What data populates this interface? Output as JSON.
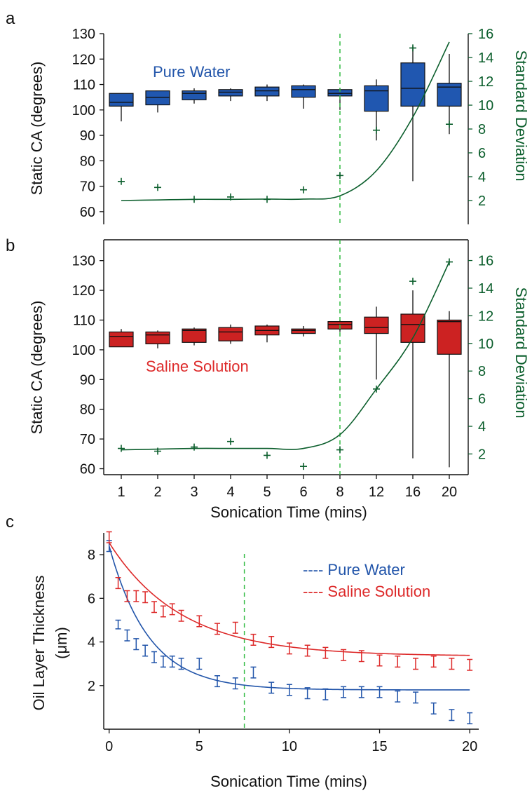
{
  "chart_data": [
    {
      "panel": "a",
      "type": "box",
      "annotation": "Pure Water",
      "categories": [
        "1",
        "2",
        "3",
        "4",
        "5",
        "6",
        "8",
        "12",
        "16",
        "20"
      ],
      "ylabel": "Static CA (degrees)",
      "ylim": [
        55,
        130
      ],
      "yticks": [
        60,
        70,
        80,
        90,
        100,
        110,
        120,
        130
      ],
      "y2label": "Standard Deviation",
      "y2lim": [
        0,
        16
      ],
      "y2ticks": [
        2,
        4,
        6,
        8,
        10,
        12,
        14,
        16
      ],
      "box_color": "#2057b0",
      "boxes": [
        {
          "min": 95.5,
          "q1": 101.5,
          "median": 103,
          "q3": 106.5,
          "max": 106.5
        },
        {
          "min": 99,
          "q1": 102,
          "median": 105,
          "q3": 107.5,
          "max": 107.5
        },
        {
          "min": 102.5,
          "q1": 104,
          "median": 106.5,
          "q3": 107.5,
          "max": 108.5
        },
        {
          "min": 103.5,
          "q1": 105.5,
          "median": 107,
          "q3": 108,
          "max": 108.5
        },
        {
          "min": 103.5,
          "q1": 105.5,
          "median": 107.5,
          "q3": 109,
          "max": 110
        },
        {
          "min": 100.5,
          "q1": 105,
          "median": 108,
          "q3": 109.5,
          "max": 110
        },
        {
          "min": 100,
          "q1": 105.5,
          "median": 106.5,
          "q3": 108,
          "max": 108.5
        },
        {
          "min": 88,
          "q1": 99.5,
          "median": 107.5,
          "q3": 109.5,
          "max": 112
        },
        {
          "min": 72,
          "q1": 101.5,
          "median": 108.5,
          "q3": 118.5,
          "max": 125
        },
        {
          "min": 90.5,
          "q1": 101.5,
          "median": 109,
          "q3": 110.5,
          "max": 122
        }
      ],
      "std_dev_points": [
        3.6,
        3.1,
        2.1,
        2.3,
        2.1,
        2.9,
        4.1,
        7.9,
        14.8,
        8.4
      ],
      "std_dev_fit": [
        2.0,
        2.05,
        2.1,
        2.1,
        2.12,
        2.12,
        2.4,
        4.5,
        9.0,
        15.3
      ],
      "vline_category_index": 6,
      "line_color": "#0b5e2c",
      "vline_color": "#33bb44"
    },
    {
      "panel": "b",
      "type": "box",
      "annotation": "Saline Solution",
      "categories": [
        "1",
        "2",
        "3",
        "4",
        "5",
        "6",
        "8",
        "12",
        "16",
        "20"
      ],
      "xlabel": "Sonication Time (mins)",
      "ylabel": "Static CA (degrees)",
      "ylim": [
        58,
        137
      ],
      "yticks": [
        60,
        70,
        80,
        90,
        100,
        110,
        120,
        130
      ],
      "y2label": "Standard Deviation",
      "y2lim": [
        0.5,
        17.5
      ],
      "y2ticks": [
        2,
        4,
        6,
        8,
        10,
        12,
        14,
        16
      ],
      "box_color": "#cc2222",
      "boxes": [
        {
          "min": 101,
          "q1": 101,
          "median": 104.5,
          "q3": 106,
          "max": 107
        },
        {
          "min": 100.5,
          "q1": 102,
          "median": 105,
          "q3": 106,
          "max": 106.5
        },
        {
          "min": 101.5,
          "q1": 102.5,
          "median": 106.5,
          "q3": 107,
          "max": 107.5
        },
        {
          "min": 102,
          "q1": 103,
          "median": 106,
          "q3": 107.5,
          "max": 108.5
        },
        {
          "min": 102.5,
          "q1": 105,
          "median": 106.5,
          "q3": 108,
          "max": 108.5
        },
        {
          "min": 104.5,
          "q1": 105.5,
          "median": 106.5,
          "q3": 107,
          "max": 108
        },
        {
          "min": 106,
          "q1": 107,
          "median": 108.5,
          "q3": 109.5,
          "max": 110
        },
        {
          "min": 90,
          "q1": 105.5,
          "median": 107.5,
          "q3": 111,
          "max": 114.5
        },
        {
          "min": 63.5,
          "q1": 102.5,
          "median": 108.5,
          "q3": 112,
          "max": 120
        },
        {
          "min": 60.5,
          "q1": 98.5,
          "median": 109.5,
          "q3": 110,
          "max": 113
        }
      ],
      "std_dev_points": [
        2.4,
        2.2,
        2.5,
        2.9,
        1.9,
        1.1,
        2.3,
        6.7,
        14.5,
        15.9
      ],
      "std_dev_fit": [
        2.3,
        2.35,
        2.4,
        2.4,
        2.4,
        2.4,
        3.4,
        6.7,
        10.4,
        15.9
      ],
      "vline_category_index": 6,
      "line_color": "#0b5e2c",
      "vline_color": "#33bb44"
    },
    {
      "panel": "c",
      "type": "scatter",
      "xlabel": "Sonication Time (mins)",
      "ylabel": "Oil Layer Thickness (μm)",
      "ylabel_lines": [
        "Oil Layer Thickness",
        "(μm)"
      ],
      "xlim": [
        -0.3,
        20.5
      ],
      "ylim": [
        0,
        9.0
      ],
      "xticks": [
        0,
        5,
        10,
        15,
        20
      ],
      "yticks": [
        2,
        4,
        6,
        8
      ],
      "vline_x": 7.5,
      "vline_color": "#33bb44",
      "series": [
        {
          "name": "Pure Water",
          "legend_label": "---- Pure Water",
          "color": "#2255aa",
          "x": [
            0,
            0.5,
            1,
            1.5,
            2,
            2.5,
            3,
            3.5,
            4,
            5,
            6,
            7,
            8,
            9,
            10,
            11,
            12,
            13,
            14,
            15,
            16,
            17,
            18,
            19,
            20
          ],
          "y": [
            8.4,
            4.8,
            4.3,
            3.9,
            3.6,
            3.3,
            3.1,
            3.1,
            3.0,
            3.0,
            2.2,
            2.1,
            2.6,
            1.9,
            1.8,
            1.65,
            1.6,
            1.7,
            1.7,
            1.7,
            1.5,
            1.45,
            0.95,
            0.65,
            0.5
          ],
          "err": [
            0.25,
            0.2,
            0.25,
            0.25,
            0.25,
            0.25,
            0.25,
            0.25,
            0.25,
            0.25,
            0.25,
            0.25,
            0.25,
            0.25,
            0.25,
            0.25,
            0.25,
            0.25,
            0.25,
            0.25,
            0.25,
            0.25,
            0.25,
            0.25,
            0.25
          ],
          "fit": {
            "a": 6.6,
            "tau": 2.2,
            "c": 1.8
          }
        },
        {
          "name": "Saline Solution",
          "legend_label": "---- Saline Solution",
          "color": "#dd2a2a",
          "x": [
            0,
            0.5,
            1,
            1.5,
            2,
            2.5,
            3,
            3.5,
            4,
            5,
            6,
            7,
            8,
            9,
            10,
            11,
            12,
            13,
            14,
            15,
            16,
            17,
            18,
            19,
            20
          ],
          "y": [
            8.8,
            6.7,
            6.1,
            6.1,
            6.05,
            5.6,
            5.4,
            5.5,
            5.2,
            4.95,
            4.6,
            4.65,
            4.1,
            4.0,
            3.7,
            3.6,
            3.5,
            3.4,
            3.35,
            3.15,
            3.1,
            3.0,
            3.1,
            3.0,
            2.95
          ],
          "err": [
            0.25,
            0.25,
            0.25,
            0.25,
            0.25,
            0.25,
            0.25,
            0.25,
            0.25,
            0.25,
            0.25,
            0.25,
            0.25,
            0.25,
            0.25,
            0.25,
            0.25,
            0.25,
            0.25,
            0.25,
            0.25,
            0.25,
            0.25,
            0.25,
            0.25
          ],
          "fit": {
            "a": 5.2,
            "tau": 4.0,
            "c": 3.35
          }
        }
      ]
    }
  ],
  "panel_letters": [
    "a",
    "b",
    "c"
  ]
}
